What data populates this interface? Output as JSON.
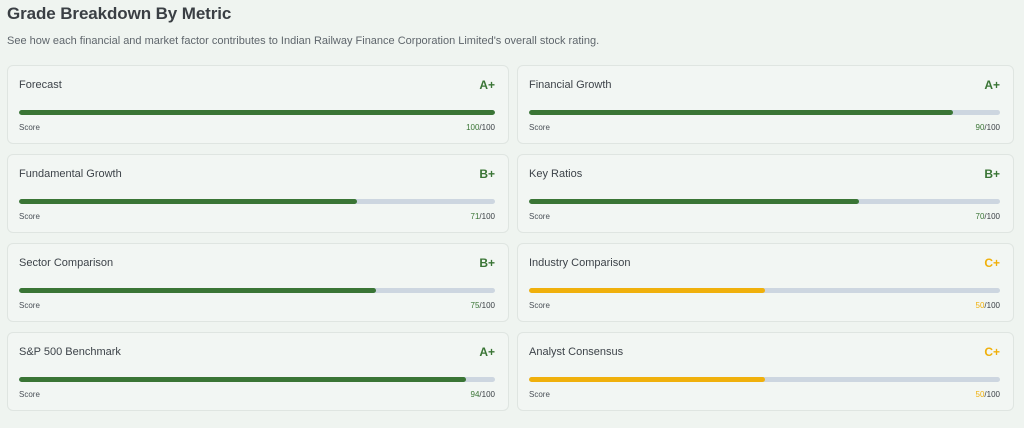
{
  "header": {
    "title": "Grade Breakdown By Metric",
    "subtitle": "See how each financial and market factor contributes to Indian Railway Finance Corporation Limited's overall stock rating."
  },
  "colors": {
    "green": "#3a7535",
    "gold": "#f0b00b",
    "track": "#cdd6e0"
  },
  "metrics": [
    {
      "name": "Forecast",
      "grade": "A+",
      "score": 100,
      "score_text": "100",
      "max_text": "/100",
      "score_label": "Score",
      "color": "#3a7535"
    },
    {
      "name": "Financial Growth",
      "grade": "A+",
      "score": 90,
      "score_text": "90",
      "max_text": "/100",
      "score_label": "Score",
      "color": "#3a7535"
    },
    {
      "name": "Fundamental Growth",
      "grade": "B+",
      "score": 71,
      "score_text": "71",
      "max_text": "/100",
      "score_label": "Score",
      "color": "#3a7535"
    },
    {
      "name": "Key Ratios",
      "grade": "B+",
      "score": 70,
      "score_text": "70",
      "max_text": "/100",
      "score_label": "Score",
      "color": "#3a7535"
    },
    {
      "name": "Sector Comparison",
      "grade": "B+",
      "score": 75,
      "score_text": "75",
      "max_text": "/100",
      "score_label": "Score",
      "color": "#3a7535"
    },
    {
      "name": "Industry Comparison",
      "grade": "C+",
      "score": 50,
      "score_text": "50",
      "max_text": "/100",
      "score_label": "Score",
      "color": "#f0b00b"
    },
    {
      "name": "S&P 500 Benchmark",
      "grade": "A+",
      "score": 94,
      "score_text": "94",
      "max_text": "/100",
      "score_label": "Score",
      "color": "#3a7535"
    },
    {
      "name": "Analyst Consensus",
      "grade": "C+",
      "score": 50,
      "score_text": "50",
      "max_text": "/100",
      "score_label": "Score",
      "color": "#f0b00b"
    }
  ]
}
